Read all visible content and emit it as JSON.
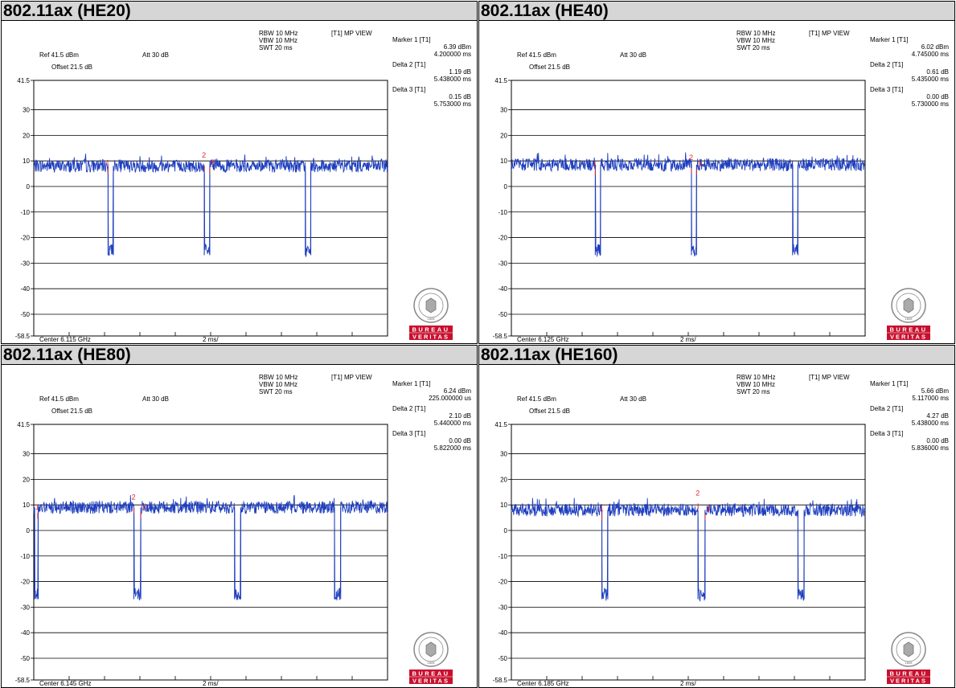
{
  "panels": [
    {
      "title": "802.11ax (HE20)",
      "header": {
        "rbw": "RBW 10 MHz",
        "vbw": "VBW 10 MHz",
        "swt": "SWT 20 ms",
        "mode": "[T1] MP VIEW",
        "ref": "Ref 41.5 dBm",
        "att": "Att 30 dB",
        "offset": "Offset 21.5 dB"
      },
      "markers": [
        {
          "label": "Marker 1 [T1]",
          "value": "6.39 dBm",
          "time": "4.200000 ms"
        },
        {
          "label": "Delta 2 [T1]",
          "value": "1.19 dB",
          "time": "5.438000 ms"
        },
        {
          "label": "Delta 3 [T1]",
          "value": "0.15 dB",
          "time": "5.753000 ms"
        }
      ],
      "center": "Center 6.115 GHz",
      "div": "2 ms/",
      "chart_data": {
        "type": "line",
        "ylim": [
          -58.5,
          41.5
        ],
        "xlim": [
          0,
          20
        ],
        "x_unit": "ms",
        "y_unit": "dBm",
        "baseline_dbm": 8,
        "gaps": [
          [
            4.2,
            4.5
          ],
          [
            9.64,
            9.95
          ],
          [
            15.35,
            15.66
          ]
        ],
        "gap_floor_dbm": -25,
        "marker_points": [
          {
            "id": "1",
            "x": 4.2,
            "y": 6.39
          },
          {
            "id": "2",
            "x": 9.64,
            "y": 7.58
          },
          {
            "id": "3",
            "x": 9.95,
            "y": 6.54
          }
        ]
      }
    },
    {
      "title": "802.11ax (HE40)",
      "header": {
        "rbw": "RBW 10 MHz",
        "vbw": "VBW 10 MHz",
        "swt": "SWT 20 ms",
        "mode": "[T1] MP VIEW",
        "ref": "Ref 41.5 dBm",
        "att": "Att 30 dB",
        "offset": "Offset 21.5 dB"
      },
      "markers": [
        {
          "label": "Marker 1 [T1]",
          "value": "6.02 dBm",
          "time": "4.745000 ms"
        },
        {
          "label": "Delta 2 [T1]",
          "value": "0.61 dB",
          "time": "5.435000 ms"
        },
        {
          "label": "Delta 3 [T1]",
          "value": "0.00 dB",
          "time": "5.730000 ms"
        }
      ],
      "center": "Center 6.125 GHz",
      "div": "2 ms/",
      "chart_data": {
        "type": "line",
        "ylim": [
          -58.5,
          41.5
        ],
        "xlim": [
          0,
          20
        ],
        "x_unit": "ms",
        "y_unit": "dBm",
        "baseline_dbm": 8.5,
        "gaps": [
          [
            4.745,
            5.04
          ],
          [
            10.18,
            10.47
          ],
          [
            15.9,
            16.2
          ]
        ],
        "gap_floor_dbm": -25,
        "marker_points": [
          {
            "id": "1",
            "x": 4.745,
            "y": 6.02
          },
          {
            "id": "2",
            "x": 10.18,
            "y": 6.63
          },
          {
            "id": "3",
            "x": 10.475,
            "y": 6.02
          }
        ]
      }
    },
    {
      "title": "802.11ax (HE80)",
      "header": {
        "rbw": "RBW 10 MHz",
        "vbw": "VBW 10 MHz",
        "swt": "SWT 20 ms",
        "mode": "[T1] MP VIEW",
        "ref": "Ref 41.5 dBm",
        "att": "Att 30 dB",
        "offset": "Offset 21.5 dB"
      },
      "markers": [
        {
          "label": "Marker 1 [T1]",
          "value": "6.24 dBm",
          "time": "225.000000 us"
        },
        {
          "label": "Delta 2 [T1]",
          "value": "2.10 dB",
          "time": "5.440000 ms"
        },
        {
          "label": "Delta 3 [T1]",
          "value": "0.00 dB",
          "time": "5.822000 ms"
        }
      ],
      "center": "Center 6.145 GHz",
      "div": "2 ms/",
      "chart_data": {
        "type": "line",
        "ylim": [
          -58.5,
          41.5
        ],
        "xlim": [
          0,
          20
        ],
        "x_unit": "ms",
        "y_unit": "dBm",
        "baseline_dbm": 9,
        "gaps": [
          [
            0.05,
            0.25
          ],
          [
            5.66,
            6.05
          ],
          [
            11.35,
            11.7
          ],
          [
            17.0,
            17.35
          ]
        ],
        "gap_floor_dbm": -25,
        "marker_points": [
          {
            "id": "1",
            "x": 0.225,
            "y": 6.24
          },
          {
            "id": "2",
            "x": 5.665,
            "y": 8.34
          },
          {
            "id": "3",
            "x": 6.047,
            "y": 6.24
          }
        ]
      }
    },
    {
      "title": "802.11ax (HE160)",
      "header": {
        "rbw": "RBW 10 MHz",
        "vbw": "VBW 10 MHz",
        "swt": "SWT 20 ms",
        "mode": "[T1] MP VIEW",
        "ref": "Ref 41.5 dBm",
        "att": "Att 30 dB",
        "offset": "Offset 21.5 dB"
      },
      "markers": [
        {
          "label": "Marker 1 [T1]",
          "value": "5.66 dBm",
          "time": "5.117000 ms"
        },
        {
          "label": "Delta 2 [T1]",
          "value": "4.27 dB",
          "time": "5.438000 ms"
        },
        {
          "label": "Delta 3 [T1]",
          "value": "0.00 dB",
          "time": "5.836000 ms"
        }
      ],
      "center": "Center 6.185 GHz",
      "div": "2 ms/",
      "chart_data": {
        "type": "line",
        "ylim": [
          -58.5,
          41.5
        ],
        "xlim": [
          0,
          20
        ],
        "x_unit": "ms",
        "y_unit": "dBm",
        "baseline_dbm": 8,
        "gaps": [
          [
            5.117,
            5.45
          ],
          [
            10.55,
            10.95
          ],
          [
            16.2,
            16.55
          ]
        ],
        "gap_floor_dbm": -25,
        "marker_points": [
          {
            "id": "1",
            "x": 5.117,
            "y": 5.66
          },
          {
            "id": "2",
            "x": 10.555,
            "y": 9.93
          },
          {
            "id": "3",
            "x": 10.953,
            "y": 5.66
          }
        ]
      }
    }
  ],
  "y_ticks": [
    "41.5",
    "30",
    "20",
    "10",
    "0",
    "-10",
    "-20",
    "-30",
    "-40",
    "-50",
    "-58.5"
  ],
  "y_tick_values": [
    41.5,
    30,
    20,
    10,
    0,
    -10,
    -20,
    -30,
    -40,
    -50,
    -58.5
  ],
  "logo": {
    "top": "BUREAU",
    "bottom": "VERITAS",
    "year": "1828"
  },
  "colors": {
    "trace": "#1f3fbf",
    "marker": "#e8262a",
    "grid": "#000000",
    "logo_red": "#c8102e"
  }
}
